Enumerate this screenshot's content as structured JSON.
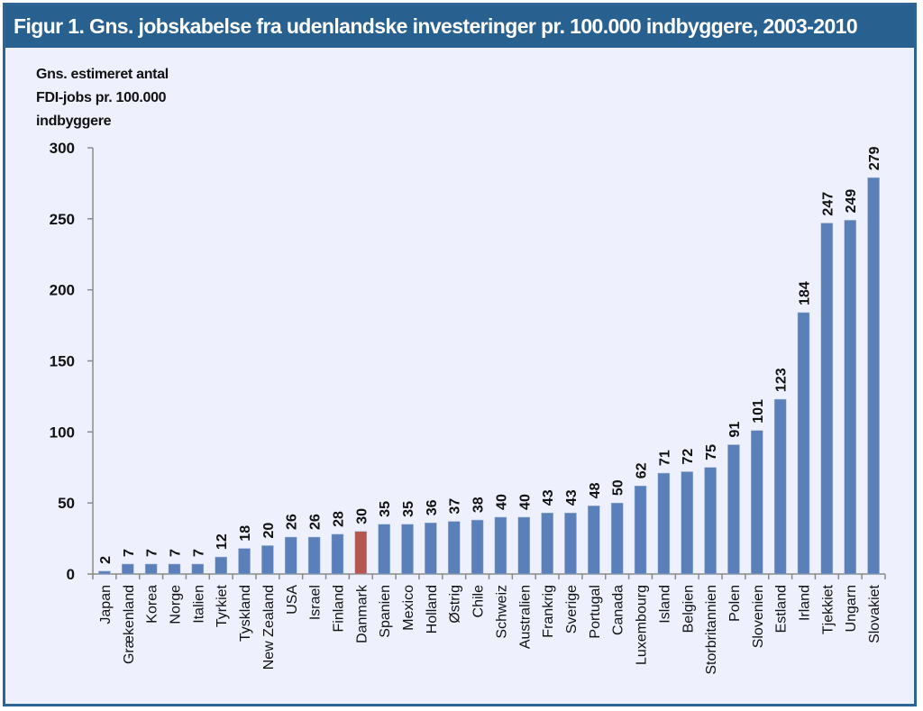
{
  "chart_data": {
    "type": "bar",
    "title": "Figur 1. Gns. jobskabelse fra udenlandske investeringer pr. 100.000 indbyggere, 2003-2010",
    "ylabel": "Gns. estimeret antal\nFDI-jobs pr. 100.000\nindbyggere",
    "xlabel": "",
    "ylim": [
      0,
      300
    ],
    "yticks": [
      0,
      50,
      100,
      150,
      200,
      250,
      300
    ],
    "grid": false,
    "legend": "none",
    "colors": {
      "default": "#5b80b9",
      "highlight": "#b5564f"
    },
    "highlight": "Danmark",
    "categories": [
      "Japan",
      "Grækenland",
      "Korea",
      "Norge",
      "Italien",
      "Tyrkiet",
      "Tyskland",
      "New Zealand",
      "USA",
      "Israel",
      "Finland",
      "Danmark",
      "Spanien",
      "Mexico",
      "Holland",
      "Østrig",
      "Chile",
      "Schweiz",
      "Australien",
      "Frankrig",
      "Sverige",
      "Portugal",
      "Canada",
      "Luxembourg",
      "Island",
      "Belgien",
      "Storbritannien",
      "Polen",
      "Slovenien",
      "Estland",
      "Irland",
      "Tjekkiet",
      "Ungarn",
      "Slovakiet"
    ],
    "values": [
      2,
      7,
      7,
      7,
      7,
      12,
      18,
      20,
      26,
      26,
      28,
      30,
      35,
      35,
      36,
      37,
      38,
      40,
      40,
      43,
      43,
      48,
      50,
      62,
      71,
      72,
      75,
      91,
      101,
      123,
      184,
      247,
      249,
      279
    ],
    "data_labels": [
      "2",
      "7",
      "7",
      "7",
      "7",
      "12",
      "18",
      "20",
      "26",
      "26",
      "28",
      "30",
      "35",
      "35",
      "36",
      "37",
      "38",
      "40",
      "40",
      "43",
      "43",
      "48",
      "50",
      "62",
      "71",
      "72",
      "75",
      "91",
      "101",
      "123",
      "184",
      "247",
      "249",
      "279"
    ]
  }
}
